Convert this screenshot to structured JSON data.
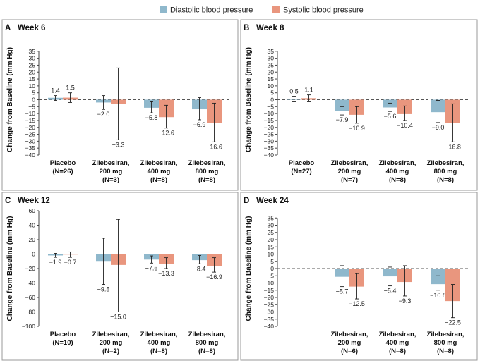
{
  "legend": {
    "diastolic_label": "Diastolic blood pressure",
    "systolic_label": "Systolic blood pressure"
  },
  "colors": {
    "diastolic": "#8fb8cc",
    "systolic": "#e9967e",
    "panel_border": "#9a9a9a",
    "axis": "#444444"
  },
  "chart_data": [
    {
      "type": "bar",
      "letter": "A",
      "title": "Week 6",
      "ylabel": "Change from Baseline (mm Hg)",
      "ylim": [
        -40,
        40
      ],
      "yticks": [
        35,
        30,
        25,
        20,
        15,
        10,
        5,
        0,
        -5,
        -10,
        -15,
        -20,
        -25,
        -30,
        -35,
        -40
      ],
      "ytick_labels": [
        "35",
        "30",
        "25",
        "20",
        "15",
        "10",
        "5",
        "0",
        "−5",
        "−10",
        "−15",
        "−20",
        "−25",
        "−30",
        "−35",
        "−40"
      ],
      "groups": [
        {
          "name": "Placebo",
          "n": "(N=26)"
        },
        {
          "name": "Zilebesiran,",
          "sub": "200 mg",
          "n": "(N=3)"
        },
        {
          "name": "Zilebesiran,",
          "sub": "400 mg",
          "n": "(N=8)"
        },
        {
          "name": "Zilebesiran,",
          "sub": "800 mg",
          "n": "(N=8)"
        }
      ],
      "series": [
        {
          "name": "Diastolic blood pressure",
          "values": [
            1.4,
            -2.0,
            -5.8,
            -6.9
          ],
          "labels": [
            "1.4",
            "−2.0",
            "−5.8",
            "−6.9"
          ],
          "err_low": [
            -0.5,
            -7.0,
            -9.5,
            -14.5
          ],
          "err_high": [
            3.0,
            3.0,
            -1.5,
            1.5
          ]
        },
        {
          "name": "Systolic blood pressure",
          "values": [
            1.5,
            -3.3,
            -12.6,
            -16.6
          ],
          "labels": [
            "1.5",
            "−3.3",
            "−12.6",
            "−16.6"
          ],
          "err_low": [
            -2.0,
            -29.0,
            -20.5,
            -30.5
          ],
          "err_high": [
            5.0,
            23.0,
            -4.0,
            -2.5
          ]
        }
      ]
    },
    {
      "type": "bar",
      "letter": "B",
      "title": "Week 8",
      "ylabel": "Change from Baseline (mm Hg)",
      "ylim": [
        -40,
        40
      ],
      "yticks": [
        35,
        30,
        25,
        20,
        15,
        10,
        5,
        0,
        -5,
        -10,
        -15,
        -20,
        -25,
        -30,
        -35,
        -40
      ],
      "ytick_labels": [
        "35",
        "30",
        "25",
        "20",
        "15",
        "10",
        "5",
        "0",
        "−5",
        "−10",
        "−15",
        "−20",
        "−25",
        "−30",
        "−35",
        "−40"
      ],
      "groups": [
        {
          "name": "Placebo",
          "n": "(N=27)"
        },
        {
          "name": "Zilebesiran,",
          "sub": "200 mg",
          "n": "(N=7)"
        },
        {
          "name": "Zilebesiran,",
          "sub": "400 mg",
          "n": "(N=8)"
        },
        {
          "name": "Zilebesiran,",
          "sub": "800 mg",
          "n": "(N=8)"
        }
      ],
      "series": [
        {
          "name": "Diastolic blood pressure",
          "values": [
            0.5,
            -7.9,
            -5.6,
            -9.0
          ],
          "labels": [
            "0.5",
            "−7.9",
            "−5.6",
            "−9.0"
          ],
          "err_low": [
            -1.5,
            -11.0,
            -8.5,
            -16.5
          ],
          "err_high": [
            2.5,
            -5.0,
            -2.5,
            -0.5
          ]
        },
        {
          "name": "Systolic blood pressure",
          "values": [
            1.1,
            -10.9,
            -10.4,
            -16.8
          ],
          "labels": [
            "1.1",
            "−10.9",
            "−10.4",
            "−16.8"
          ],
          "err_low": [
            -1.5,
            -17.0,
            -15.0,
            -30.5
          ],
          "err_high": [
            3.5,
            -5.0,
            -4.5,
            -3.0
          ]
        }
      ]
    },
    {
      "type": "bar",
      "letter": "C",
      "title": "Week 12",
      "ylabel": "Change from Baseline (mm Hg)",
      "ylim": [
        -100,
        60
      ],
      "yticks": [
        60,
        40,
        20,
        0,
        -20,
        -40,
        -60,
        -80,
        -100
      ],
      "ytick_labels": [
        "60",
        "40",
        "20",
        "0",
        "−20",
        "−40",
        "−60",
        "−80",
        "−100"
      ],
      "groups": [
        {
          "name": "Placebo",
          "n": "(N=10)"
        },
        {
          "name": "Zilebesiran,",
          "sub": "200 mg",
          "n": "(N=2)"
        },
        {
          "name": "Zilebesiran,",
          "sub": "400 mg",
          "n": "(N=8)"
        },
        {
          "name": "Zilebesiran,",
          "sub": "800 mg",
          "n": "(N=8)"
        }
      ],
      "series": [
        {
          "name": "Diastolic blood pressure",
          "values": [
            -1.9,
            -9.5,
            -7.6,
            -8.4
          ],
          "labels": [
            "−1.9",
            "−9.5",
            "−7.6",
            "−8.4"
          ],
          "err_low": [
            -4.5,
            -42.0,
            -12.5,
            -13.5
          ],
          "err_high": [
            1.0,
            22.0,
            -2.5,
            -2.0
          ]
        },
        {
          "name": "Systolic blood pressure",
          "values": [
            -0.7,
            -15.0,
            -13.3,
            -16.9
          ],
          "labels": [
            "−0.7",
            "−15.0",
            "−13.3",
            "−16.9"
          ],
          "err_low": [
            -4.5,
            -80.0,
            -20.0,
            -25.0
          ],
          "err_high": [
            3.0,
            48.0,
            -5.0,
            -5.0
          ]
        }
      ]
    },
    {
      "type": "bar",
      "letter": "D",
      "title": "Week 24",
      "ylabel": "Change from Baseline (mm Hg)",
      "ylim": [
        -40,
        40
      ],
      "yticks": [
        35,
        30,
        25,
        20,
        15,
        10,
        5,
        0,
        -5,
        -10,
        -15,
        -20,
        -25,
        -30,
        -35,
        -40
      ],
      "ytick_labels": [
        "35",
        "30",
        "25",
        "20",
        "15",
        "10",
        "5",
        "0",
        "−5",
        "−10",
        "−15",
        "−20",
        "−25",
        "−30",
        "−35",
        "−40"
      ],
      "groups": [
        {
          "name": "",
          "n": ""
        },
        {
          "name": "Zilebesiran,",
          "sub": "200 mg",
          "n": "(N=6)"
        },
        {
          "name": "Zilebesiran,",
          "sub": "400 mg",
          "n": "(N=8)"
        },
        {
          "name": "Zilebesiran,",
          "sub": "800 mg",
          "n": "(N=8)"
        }
      ],
      "series": [
        {
          "name": "Diastolic blood pressure",
          "values": [
            null,
            -5.7,
            -5.4,
            -10.8
          ],
          "labels": [
            "",
            "−5.7",
            "−5.4",
            "−10.8"
          ],
          "err_low": [
            null,
            -12.5,
            -12.0,
            -15.0
          ],
          "err_high": [
            null,
            2.0,
            1.0,
            -5.0
          ]
        },
        {
          "name": "Systolic blood pressure",
          "values": [
            null,
            -12.5,
            -9.3,
            -22.5
          ],
          "labels": [
            "",
            "−12.5",
            "−9.3",
            "−22.5"
          ],
          "err_low": [
            null,
            -21.0,
            -19.0,
            -34.0
          ],
          "err_high": [
            null,
            -3.5,
            2.0,
            -11.0
          ]
        }
      ]
    }
  ]
}
